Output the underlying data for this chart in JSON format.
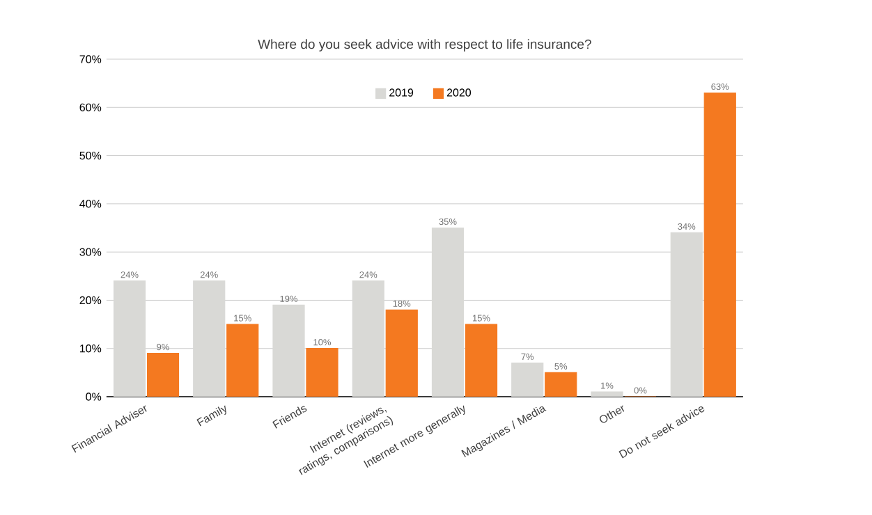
{
  "chart_data": {
    "type": "bar",
    "title": "Where do you seek advice with respect to life insurance?",
    "categories": [
      "Financial Adviser",
      "Family",
      "Friends",
      "Internet (reviews, ratings, comparisons)",
      "Internet more generally",
      "Magazines / Media",
      "Other",
      "Do not seek advice"
    ],
    "series": [
      {
        "name": "2019",
        "color": "#d9d9d6",
        "values": [
          24,
          24,
          19,
          24,
          35,
          7,
          1,
          34
        ],
        "value_labels": [
          "24%",
          "24%",
          "19%",
          "24%",
          "35%",
          "7%",
          "1%",
          "34%"
        ]
      },
      {
        "name": "2020",
        "color": "#f47920",
        "values": [
          9,
          15,
          10,
          18,
          15,
          5,
          0,
          63
        ],
        "value_labels": [
          "9%",
          "15%",
          "10%",
          "18%",
          "15%",
          "5%",
          "0%",
          "63%"
        ]
      }
    ],
    "ylim": [
      0,
      70
    ],
    "yticks": [
      {
        "value": 0,
        "label": "0%"
      },
      {
        "value": 10,
        "label": "10%"
      },
      {
        "value": 20,
        "label": "20%"
      },
      {
        "value": 30,
        "label": "30%"
      },
      {
        "value": 40,
        "label": "40%"
      },
      {
        "value": 50,
        "label": "50%"
      },
      {
        "value": 60,
        "label": "60%"
      },
      {
        "value": 70,
        "label": "70%"
      }
    ],
    "grid": "y",
    "legend": "top"
  }
}
